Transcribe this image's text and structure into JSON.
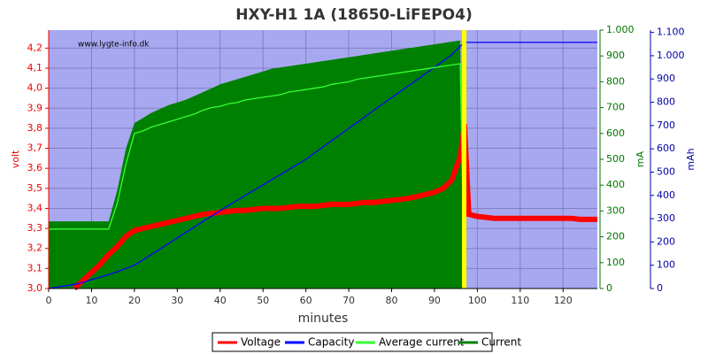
{
  "chart_data": {
    "type": "line",
    "title": "HXY-H1 1A (18650-LiFEPO4)",
    "annotation": "www.lygte-info.dk",
    "xlabel": "minutes",
    "ylabel": "volt",
    "y2label": "mA",
    "y3label": "mAh",
    "xlim": [
      0,
      128
    ],
    "xticks": [
      0,
      10,
      20,
      30,
      40,
      50,
      60,
      70,
      80,
      90,
      100,
      110,
      120
    ],
    "ylim": [
      3.0,
      4.29
    ],
    "yticks": [
      {
        "value": 3.0,
        "label": "3,0"
      },
      {
        "value": 3.1,
        "label": "3,1"
      },
      {
        "value": 3.2,
        "label": "3,2"
      },
      {
        "value": 3.3,
        "label": "3,3"
      },
      {
        "value": 3.4,
        "label": "3,4"
      },
      {
        "value": 3.5,
        "label": "3,5"
      },
      {
        "value": 3.6,
        "label": "3,6"
      },
      {
        "value": 3.7,
        "label": "3,7"
      },
      {
        "value": 3.8,
        "label": "3,8"
      },
      {
        "value": 3.9,
        "label": "3,9"
      },
      {
        "value": 4.0,
        "label": "4,0"
      },
      {
        "value": 4.1,
        "label": "4,1"
      },
      {
        "value": 4.2,
        "label": "4,2"
      }
    ],
    "y2lim": [
      0,
      1000
    ],
    "y2ticks": [
      0,
      100,
      200,
      300,
      400,
      500,
      600,
      700,
      800,
      900,
      {
        "value": 1000,
        "label": "1.000"
      }
    ],
    "y3lim": [
      0,
      1110
    ],
    "y3ticks": [
      0,
      100,
      200,
      300,
      400,
      500,
      600,
      700,
      800,
      900,
      {
        "value": 1000,
        "label": "1.000"
      },
      {
        "value": 1100,
        "label": "1.100"
      }
    ],
    "grid": true,
    "legend": "bottom",
    "x": [
      0,
      2,
      4,
      6,
      8,
      10,
      12,
      14,
      16,
      18,
      20,
      22,
      24,
      26,
      28,
      30,
      32,
      34,
      36,
      38,
      40,
      42,
      44,
      46,
      48,
      50,
      52,
      54,
      56,
      58,
      60,
      62,
      64,
      66,
      68,
      70,
      72,
      74,
      76,
      78,
      80,
      82,
      84,
      86,
      88,
      90,
      92,
      94,
      96,
      97,
      98,
      100,
      102,
      104,
      106,
      108,
      110,
      112,
      114,
      116,
      118,
      120,
      122,
      124,
      126,
      128
    ],
    "series": [
      {
        "name": "Voltage",
        "color": "#ff0000",
        "axis": "y",
        "type": "line",
        "values": [
          null,
          null,
          null,
          3.0,
          3.04,
          3.08,
          3.12,
          3.17,
          3.21,
          3.26,
          3.29,
          3.3,
          3.31,
          3.32,
          3.33,
          3.34,
          3.35,
          3.36,
          3.37,
          3.375,
          3.38,
          3.385,
          3.39,
          3.39,
          3.395,
          3.4,
          3.4,
          3.4,
          3.405,
          3.41,
          3.41,
          3.41,
          3.415,
          3.42,
          3.42,
          3.42,
          3.425,
          3.43,
          3.43,
          3.435,
          3.44,
          3.445,
          3.45,
          3.46,
          3.47,
          3.48,
          3.5,
          3.54,
          3.66,
          3.82,
          3.37,
          3.36,
          3.355,
          3.35,
          3.35,
          3.35,
          3.35,
          3.35,
          3.35,
          3.35,
          3.35,
          3.35,
          3.35,
          3.345,
          3.345,
          3.345
        ]
      },
      {
        "name": "Capacity",
        "color": "#0000ff",
        "axis": "y3",
        "type": "line",
        "values": [
          0,
          6,
          12,
          18,
          26,
          38,
          48,
          60,
          72,
          86,
          100,
          123,
          147,
          170,
          194,
          217,
          241,
          264,
          288,
          311,
          335,
          357,
          379,
          401,
          423,
          445,
          467,
          489,
          511,
          533,
          555,
          582,
          608,
          635,
          661,
          688,
          714,
          741,
          767,
          794,
          820,
          846,
          872,
          898,
          924,
          950,
          977,
          1004,
          1040,
          1057,
          1057,
          1057,
          1057,
          1057,
          1057,
          1057,
          1057,
          1057,
          1057,
          1057,
          1057,
          1057,
          1057,
          1057,
          1057,
          1057
        ]
      },
      {
        "name": "Average current",
        "color": "#33ff33",
        "axis": "y2",
        "type": "line",
        "values": [
          230,
          230,
          230,
          230,
          230,
          230,
          230,
          230,
          330,
          480,
          600,
          610,
          625,
          635,
          645,
          655,
          665,
          675,
          690,
          700,
          705,
          715,
          720,
          730,
          735,
          740,
          745,
          750,
          760,
          765,
          770,
          775,
          780,
          790,
          795,
          800,
          810,
          815,
          820,
          825,
          830,
          835,
          840,
          845,
          850,
          855,
          860,
          865,
          870,
          0,
          null,
          null,
          null,
          null,
          null,
          null,
          null,
          null,
          null,
          null,
          null,
          null,
          null,
          null,
          null,
          null
        ]
      },
      {
        "name": "Current",
        "color": "#008000",
        "axis": "y2",
        "type": "area",
        "values": [
          260,
          260,
          260,
          260,
          260,
          260,
          260,
          260,
          380,
          540,
          640,
          660,
          680,
          695,
          710,
          720,
          730,
          745,
          760,
          775,
          790,
          800,
          810,
          820,
          830,
          840,
          850,
          855,
          860,
          865,
          870,
          875,
          880,
          885,
          890,
          895,
          900,
          905,
          910,
          915,
          920,
          925,
          930,
          935,
          940,
          945,
          950,
          955,
          960,
          0,
          null,
          null,
          null,
          null,
          null,
          null,
          null,
          null,
          null,
          null,
          null,
          null,
          null,
          null,
          null,
          null
        ]
      }
    ]
  }
}
